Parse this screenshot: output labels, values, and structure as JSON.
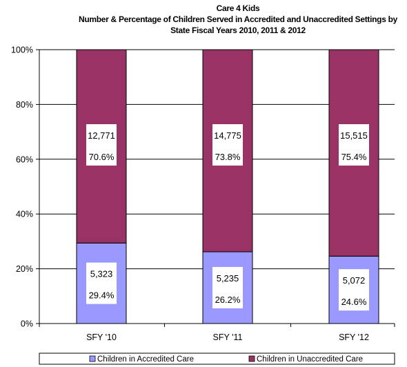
{
  "chart_data": {
    "type": "bar",
    "stacked": true,
    "percent_stacked": true,
    "title": "Care 4 Kids",
    "subtitle_lines": [
      "Number & Percentage of Children Served in Accredited and Unaccredited Settings by",
      "State Fiscal Years 2010, 2011 &  2012"
    ],
    "categories": [
      "SFY '10",
      "SFY '11",
      "SFY '12"
    ],
    "y_ticks": [
      "0%",
      "20%",
      "40%",
      "60%",
      "80%",
      "100%"
    ],
    "ylim": [
      0,
      100
    ],
    "grid": true,
    "legend_position": "bottom",
    "series": [
      {
        "name": "Children in Accredited Care",
        "color": "#9999ff",
        "counts": [
          "5,323",
          "5,235",
          "5,072"
        ],
        "percent_labels": [
          "29.4%",
          "26.2%",
          "24.6%"
        ],
        "values": [
          29.4,
          26.2,
          24.6
        ]
      },
      {
        "name": "Children in Unaccredited Care",
        "color": "#993366",
        "counts": [
          "12,771",
          "14,775",
          "15,515"
        ],
        "percent_labels": [
          "70.6%",
          "73.8%",
          "75.4%"
        ],
        "values": [
          70.6,
          73.8,
          75.4
        ]
      }
    ]
  }
}
